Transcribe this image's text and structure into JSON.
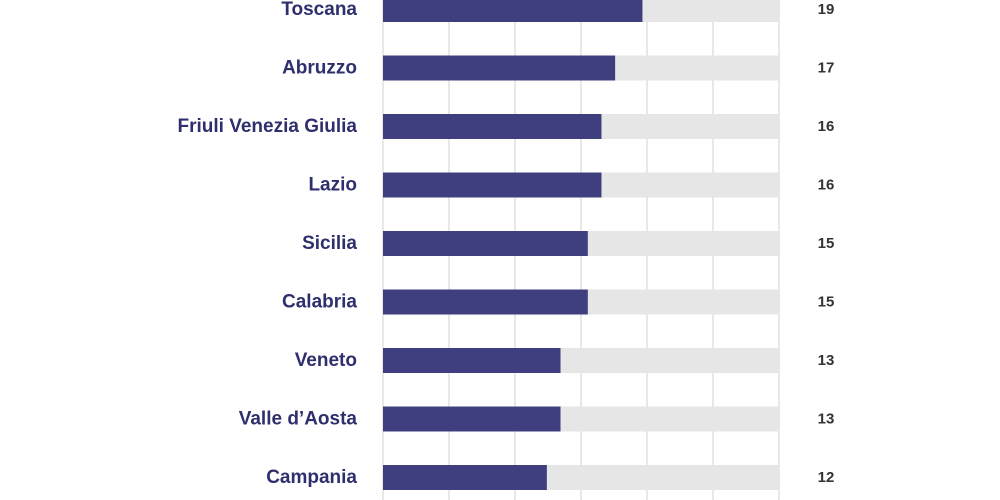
{
  "chart_data": {
    "type": "bar",
    "orientation": "horizontal",
    "categories": [
      "Toscana",
      "Abruzzo",
      "Friuli Venezia Giulia",
      "Lazio",
      "Sicilia",
      "Calabria",
      "Veneto",
      "Valle d’Aosta",
      "Campania"
    ],
    "values": [
      19,
      17,
      16,
      16,
      15,
      15,
      13,
      13,
      12
    ],
    "value_labels": [
      "19",
      "17",
      "16",
      "16",
      "15",
      "15",
      "13",
      "13",
      "12"
    ],
    "xlim": [
      0,
      29
    ],
    "grid": true,
    "colors": {
      "bar": "#3f3f7f",
      "track": "#e6e6e6",
      "grid": "#d0d0d0",
      "label": "#2f2f6e",
      "value_label": "#333333"
    }
  }
}
